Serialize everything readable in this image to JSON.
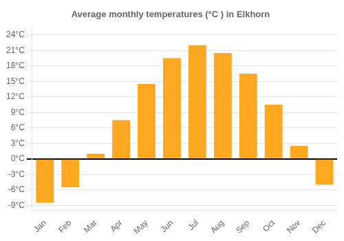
{
  "chart_data": {
    "type": "bar",
    "title": "Average monthly temperatures (°C ) in Elkhorn",
    "categories": [
      "Jan",
      "Feb",
      "Mar",
      "Apr",
      "May",
      "Jun",
      "Jul",
      "Aug",
      "Sep",
      "Oct",
      "Nov",
      "Dec"
    ],
    "values": [
      -8.5,
      -5.5,
      1.0,
      7.5,
      14.5,
      19.5,
      22.0,
      20.5,
      16.5,
      10.5,
      2.5,
      -5.0
    ],
    "color": "#FFA820",
    "ylim": [
      -10,
      25.5
    ],
    "yticks": [
      {
        "value": -9,
        "label": "-9°C"
      },
      {
        "value": -6,
        "label": "-6°C"
      },
      {
        "value": -3,
        "label": "-3°C"
      },
      {
        "value": 0,
        "label": "0°C"
      },
      {
        "value": 3,
        "label": "3°C"
      },
      {
        "value": 6,
        "label": "6°C"
      },
      {
        "value": 9,
        "label": "9°C"
      },
      {
        "value": 12,
        "label": "12°C"
      },
      {
        "value": 15,
        "label": "15°C"
      },
      {
        "value": 18,
        "label": "18°C"
      },
      {
        "value": 21,
        "label": "21°C"
      },
      {
        "value": 24,
        "label": "24°C"
      }
    ],
    "grid": true
  }
}
